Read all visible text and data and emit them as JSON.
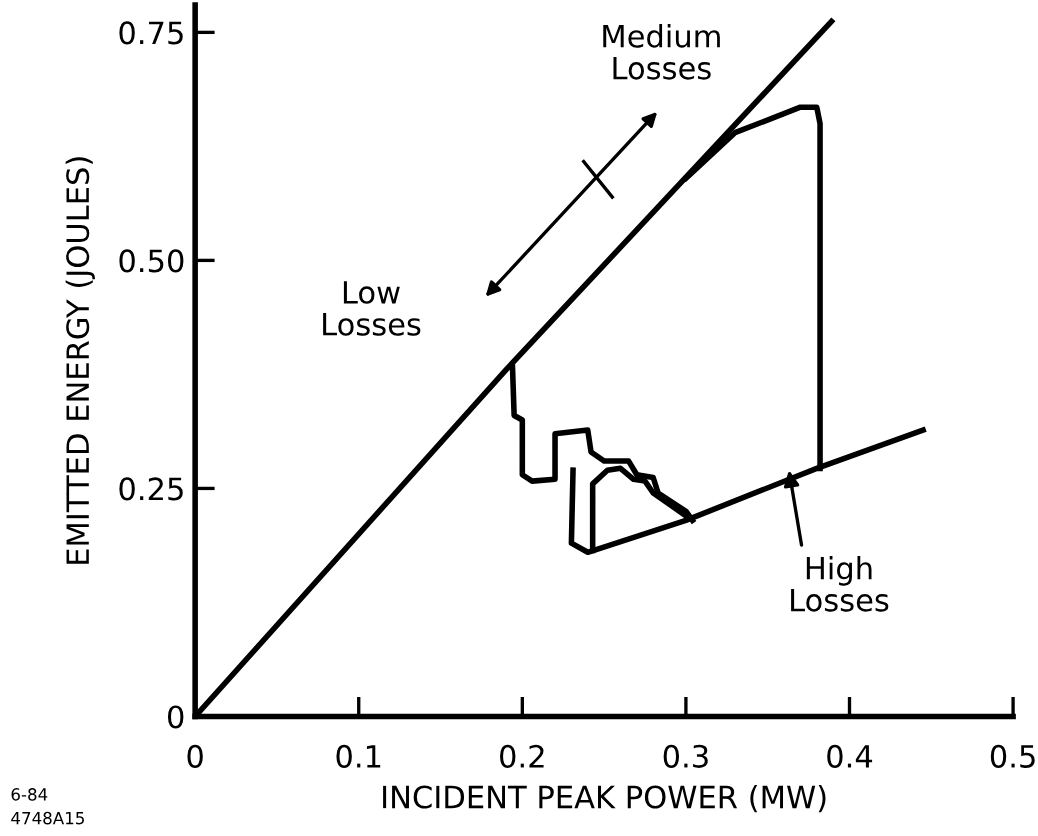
{
  "chart_data": {
    "type": "line",
    "xlabel": "INCIDENT PEAK POWER (MW)",
    "ylabel": "EMITTED ENERGY (JOULES)",
    "xlim": [
      0,
      0.5
    ],
    "xticks": [
      0,
      0.1,
      0.2,
      0.3,
      0.4,
      0.5
    ],
    "ylim": [
      0,
      0.78
    ],
    "yticks": [
      0,
      0.25,
      {
        "value": 0.5,
        "label": "0.50"
      },
      0.75
    ],
    "grid": false,
    "legend": false,
    "marker": "none",
    "line_style": "solid",
    "series": [
      {
        "color": "#000000",
        "x": [
          0,
          0.19,
          0.389
        ],
        "values": [
          0,
          0.38,
          0.762
        ]
      },
      {
        "color": "#000000",
        "x": [
          0.194,
          0.195,
          0.2,
          0.2,
          0.206,
          0.22,
          0.22,
          0.24,
          0.242,
          0.25,
          0.265,
          0.27,
          0.28,
          0.283,
          0.3,
          0.304
        ],
        "values": [
          0.383,
          0.33,
          0.325,
          0.265,
          0.258,
          0.26,
          0.31,
          0.314,
          0.29,
          0.28,
          0.28,
          0.265,
          0.262,
          0.245,
          0.225,
          0.215
        ]
      },
      {
        "color": "#000000",
        "x": [
          0.231,
          0.23,
          0.24,
          0.3,
          0.38,
          0.445
        ],
        "values": [
          0.27,
          0.19,
          0.18,
          0.215,
          0.272,
          0.314
        ]
      },
      {
        "color": "#000000",
        "x": [
          0.243,
          0.243,
          0.252,
          0.26,
          0.268,
          0.275,
          0.28,
          0.3
        ],
        "values": [
          0.182,
          0.255,
          0.27,
          0.272,
          0.26,
          0.258,
          0.245,
          0.22
        ]
      },
      {
        "color": "#000000",
        "x": [
          0.382,
          0.382,
          0.38,
          0.37,
          0.33,
          0.3
        ],
        "values": [
          0.272,
          0.65,
          0.668,
          0.668,
          0.64,
          0.59
        ]
      }
    ],
    "annotations": [
      "Low\nLosses",
      "Medium\nLosses",
      {
        "text": "High\nLosses",
        "x": 0.363,
        "y": 0.27
      },
      "6-84\n4748A15"
    ]
  }
}
